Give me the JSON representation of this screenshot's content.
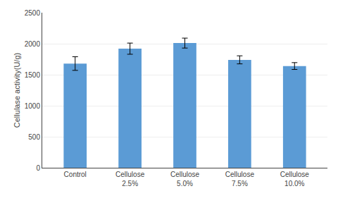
{
  "chart_data": {
    "type": "bar",
    "categories": [
      "Control",
      "Cellulose\n2.5%",
      "Cellulose\n5.0%",
      "Cellulose\n7.5%",
      "Cellulose\n10.0%"
    ],
    "values": [
      1680,
      1920,
      2010,
      1740,
      1640
    ],
    "errors": [
      110,
      90,
      80,
      65,
      55
    ],
    "color": "#5B9BD5",
    "ylabel": "Cellulase activity(U/g)",
    "ylim": [
      0,
      2500
    ],
    "yticks": [
      0,
      500,
      1000,
      1500,
      2000,
      2500
    ],
    "grid": true
  }
}
